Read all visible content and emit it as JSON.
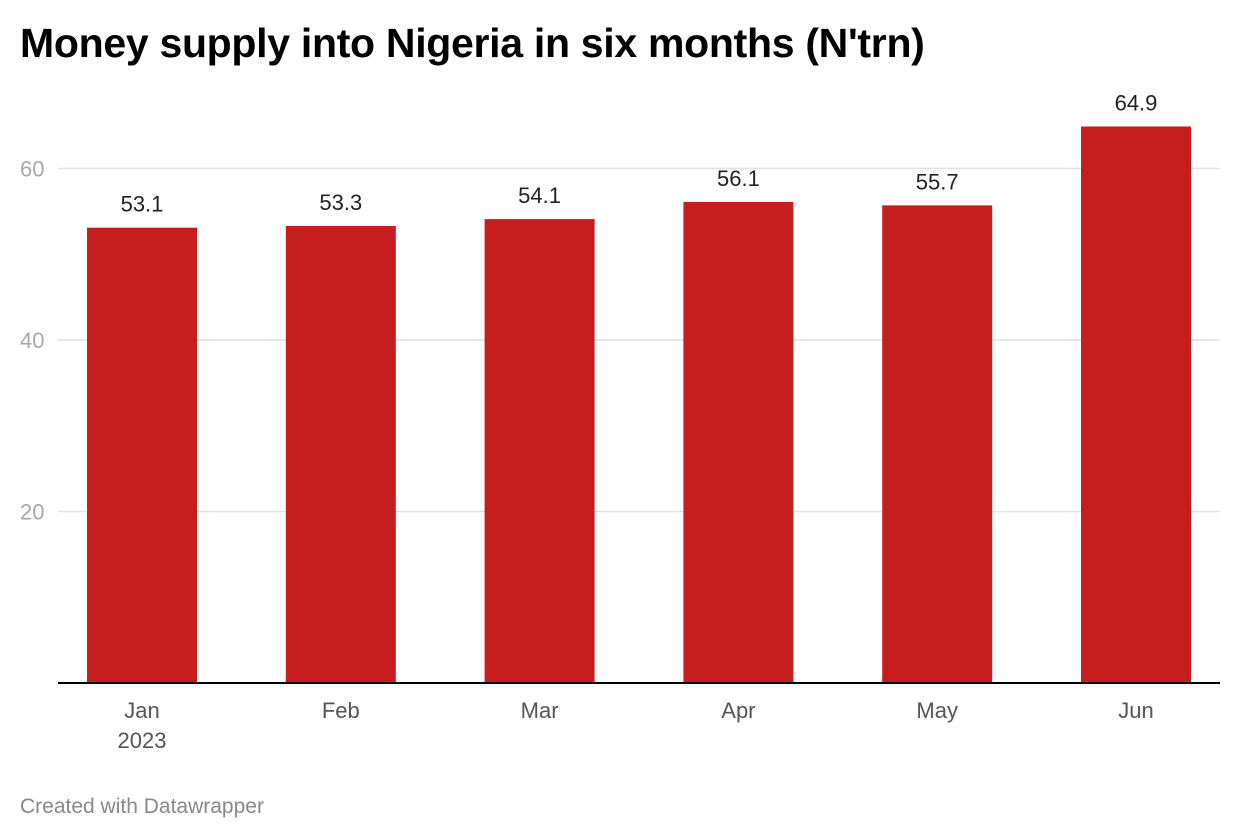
{
  "title": "Money supply into Nigeria in six months (N'trn)",
  "footer": "Created with Datawrapper",
  "colors": {
    "bar": "#c61d1f",
    "grid": "#e2e2e2",
    "axis": "#000000"
  },
  "chart_data": {
    "type": "bar",
    "title": "Money supply into Nigeria in six months (N'trn)",
    "categories": [
      "Jan",
      "Feb",
      "Mar",
      "Apr",
      "May",
      "Jun"
    ],
    "category_sublabels": [
      "2023",
      "",
      "",
      "",
      "",
      ""
    ],
    "values": [
      53.1,
      53.3,
      54.1,
      56.1,
      55.7,
      64.9
    ],
    "value_labels": [
      "53.1",
      "53.3",
      "54.1",
      "56.1",
      "55.7",
      "64.9"
    ],
    "yticks": [
      20,
      40,
      60
    ],
    "ylim": [
      0,
      70
    ],
    "xlabel": "",
    "ylabel": "",
    "grid": true,
    "legend": "none"
  }
}
